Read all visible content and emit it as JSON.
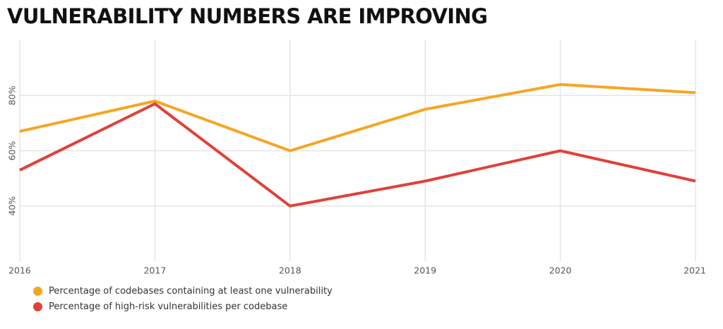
{
  "chart_data": {
    "type": "line",
    "title": "VULNERABILITY NUMBERS ARE IMPROVING",
    "xlabel": "",
    "ylabel": "",
    "x": [
      "2016",
      "2017",
      "2018",
      "2019",
      "2020",
      "2021"
    ],
    "ylim": [
      20,
      100
    ],
    "yticks": [
      40,
      60,
      80
    ],
    "ytick_labels": [
      "40%",
      "60%",
      "80%"
    ],
    "grid": true,
    "legend_position": "bottom-left",
    "series": [
      {
        "name": "Percentage of codebases containing at least one vulnerability",
        "color": "#F5A623",
        "values": [
          67,
          78,
          60,
          75,
          84,
          81
        ]
      },
      {
        "name": "Percentage of high-risk vulnerabilities per codebase",
        "color": "#E0413A",
        "values": [
          53,
          77,
          40,
          49,
          60,
          49
        ]
      }
    ]
  }
}
